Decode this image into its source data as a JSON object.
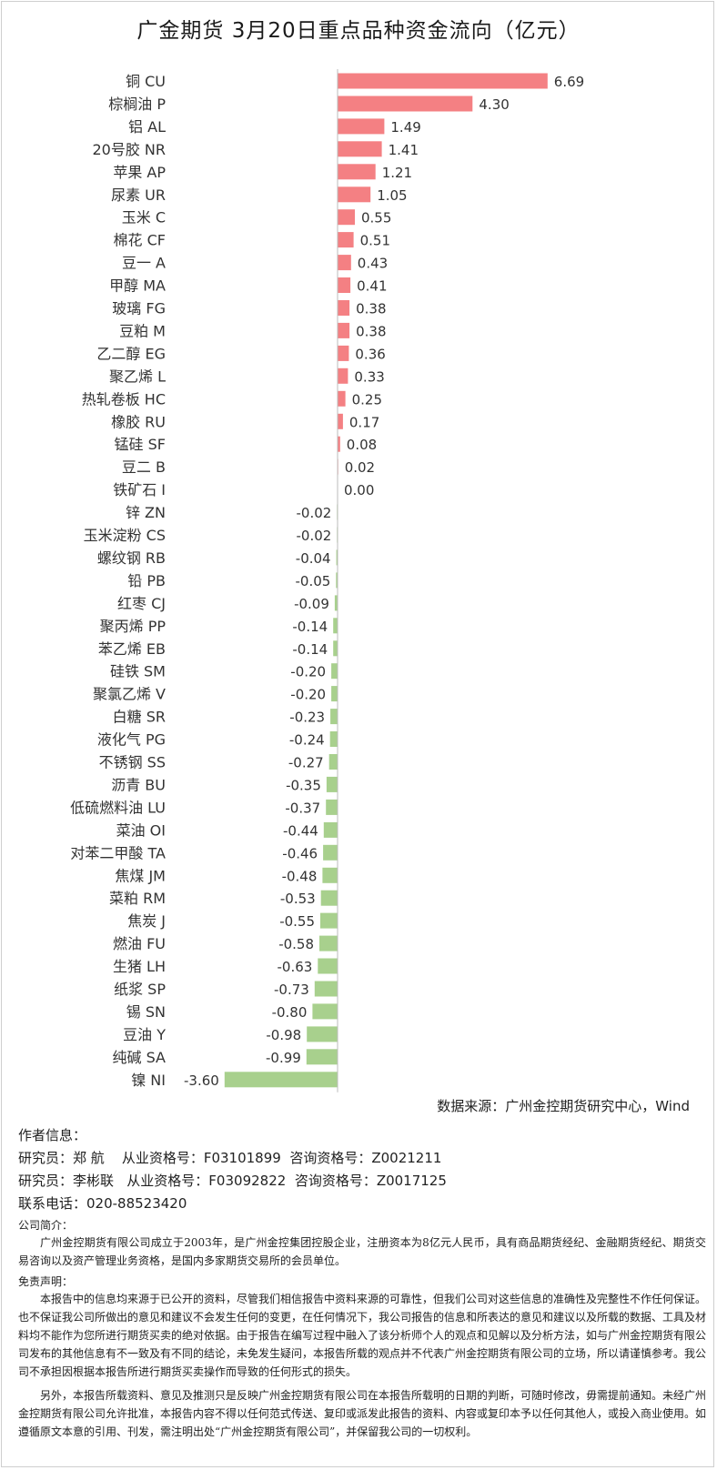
{
  "title": "广金期货 3月20日重点品种资金流向（亿元）",
  "colors": {
    "positive": "#f48083",
    "negative": "#a8d08d",
    "axis": "#bbbbbb"
  },
  "chart_data": {
    "type": "bar",
    "orientation": "horizontal",
    "title": "广金期货 3月20日重点品种资金流向（亿元）",
    "categories": [
      "铜 CU",
      "棕榈油 P",
      "铝 AL",
      "20号胶 NR",
      "苹果 AP",
      "尿素 UR",
      "玉米 C",
      "棉花 CF",
      "豆一 A",
      "甲醇 MA",
      "玻璃 FG",
      "豆粕 M",
      "乙二醇 EG",
      "聚乙烯 L",
      "热轧卷板 HC",
      "橡胶 RU",
      "锰硅 SF",
      "豆二 B",
      "铁矿石 I",
      "锌 ZN",
      "玉米淀粉 CS",
      "螺纹钢 RB",
      "铅 PB",
      "红枣 CJ",
      "聚丙烯 PP",
      "苯乙烯 EB",
      "硅铁 SM",
      "聚氯乙烯 V",
      "白糖 SR",
      "液化气 PG",
      "不锈钢 SS",
      "沥青 BU",
      "低硫燃料油 LU",
      "菜油 OI",
      "对苯二甲酸 TA",
      "焦煤 JM",
      "菜粕 RM",
      "焦炭 J",
      "燃油 FU",
      "生猪 LH",
      "纸浆 SP",
      "锡 SN",
      "豆油 Y",
      "纯碱 SA",
      "镍 NI"
    ],
    "labels": [
      "6.69",
      "4.30",
      "1.49",
      "1.41",
      "1.21",
      "1.05",
      "0.55",
      "0.51",
      "0.43",
      "0.41",
      "0.38",
      "0.38",
      "0.36",
      "0.33",
      "0.25",
      "0.17",
      "0.08",
      "0.02",
      "0.00",
      "-0.02",
      "-0.02",
      "-0.04",
      "-0.05",
      "-0.09",
      "-0.14",
      "-0.14",
      "-0.20",
      "-0.20",
      "-0.23",
      "-0.24",
      "-0.27",
      "-0.35",
      "-0.37",
      "-0.44",
      "-0.46",
      "-0.48",
      "-0.53",
      "-0.55",
      "-0.58",
      "-0.63",
      "-0.73",
      "-0.80",
      "-0.98",
      "-0.99",
      "-3.60"
    ],
    "values": [
      6.69,
      4.3,
      1.49,
      1.41,
      1.21,
      1.05,
      0.55,
      0.51,
      0.43,
      0.41,
      0.38,
      0.38,
      0.36,
      0.33,
      0.25,
      0.17,
      0.08,
      0.02,
      0.0,
      -0.02,
      -0.02,
      -0.04,
      -0.05,
      -0.09,
      -0.14,
      -0.14,
      -0.2,
      -0.2,
      -0.23,
      -0.24,
      -0.27,
      -0.35,
      -0.37,
      -0.44,
      -0.46,
      -0.48,
      -0.53,
      -0.55,
      -0.58,
      -0.63,
      -0.73,
      -0.8,
      -0.98,
      -0.99,
      -3.6
    ],
    "xlim": [
      -3.6,
      6.69
    ],
    "grid": false,
    "legend": "none"
  },
  "source": "数据来源：广州金控期货研究中心，Wind",
  "author": {
    "heading": "作者信息：",
    "line1": "研究员：郑 航    从业资格号：F03101899  咨询资格号：Z0021211",
    "line2": "研究员：李彬联   从业资格号：F03092822  咨询资格号：Z0017125",
    "phone": "联系电话：020-88523420"
  },
  "company": {
    "heading": "公司简介：",
    "text": "广州金控期货有限公司成立于2003年，是广州金控集团控股企业，注册资本为8亿元人民币，具有商品期货经纪、金融期货经纪、期货交易咨询以及资产管理业务资格，是国内多家期货交易所的会员单位。"
  },
  "disclaimer": {
    "heading": "免责声明：",
    "p1": "本报告中的信息均来源于已公开的资料，尽管我们相信报告中资料来源的可靠性，但我们公司对这些信息的准确性及完整性不作任何保证。也不保证我公司所做出的意见和建议不会发生任何的变更，在任何情况下，我公司报告的信息和所表达的意见和建议以及所载的数据、工具及材料均不能作为您所进行期货买卖的绝对依据。由于报告在编写过程中融入了该分析师个人的观点和见解以及分析方法，如与广州金控期货有限公司发布的其他信息有不一致及有不同的结论，未免发生疑问，本报告所载的观点并不代表广州金控期货有限公司的立场，所以请谨慎参考。我公司不承担因根据本报告所进行期货买卖操作而导致的任何形式的损失。",
    "p2": "另外，本报告所载资料、意见及推测只是反映广州金控期货有限公司在本报告所载明的日期的判断，可随时修改，毋需提前通知。未经广州金控期货有限公司允许批准，本报告内容不得以任何范式传送、复印或派发此报告的资料、内容或复印本予以任何其他人，或投入商业使用。如遵循原文本意的引用、刊发，需注明出处“广州金控期货有限公司”，并保留我公司的一切权利。"
  }
}
